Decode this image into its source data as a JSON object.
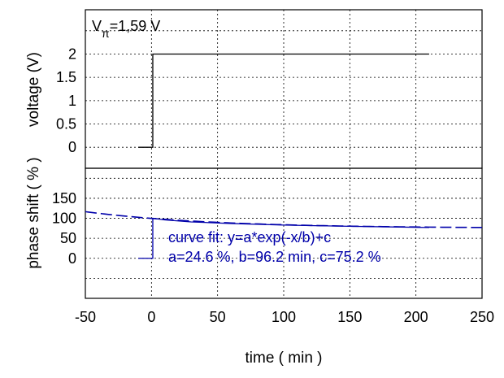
{
  "chart_data": {
    "type": "line",
    "xlabel": "time ( min )",
    "x_ticks": [
      -50,
      0,
      50,
      100,
      150,
      200,
      250
    ],
    "xlim": [
      -50,
      250
    ],
    "panels": [
      {
        "name": "voltage",
        "ylabel": "voltage (V)",
        "y_ticks": [
          0,
          0.5,
          1,
          1.5,
          2
        ],
        "y_tick_labels": [
          "0",
          "0.5",
          "1",
          "1.5",
          "2"
        ],
        "ylim": [
          -0.45,
          2.95
        ],
        "annotation": {
          "label": "V",
          "subscript": "π",
          "value": "=1,59 V"
        },
        "series": [
          {
            "style": "solid",
            "color": "#000000",
            "points": [
              [
                -10,
                0
              ],
              [
                1,
                0
              ],
              [
                1,
                2
              ],
              [
                210,
                2
              ]
            ]
          }
        ]
      },
      {
        "name": "phase shift",
        "ylabel": "phase shift ( % )",
        "y_ticks": [
          0,
          50,
          100,
          150
        ],
        "y_tick_labels": [
          "0",
          "50",
          "100",
          "150"
        ],
        "ylim": [
          -100,
          225
        ],
        "series": [
          {
            "style": "solid",
            "color": "#0000aa",
            "points": [
              [
                -10,
                0
              ],
              [
                1,
                0
              ],
              [
                1,
                100
              ],
              [
                10,
                96
              ],
              [
                30,
                91
              ],
              [
                60,
                87
              ],
              [
                100,
                83
              ],
              [
                150,
                80
              ],
              [
                210,
                77
              ]
            ]
          },
          {
            "style": "dashed",
            "color": "#0000aa",
            "fit": {
              "a": 24.6,
              "b": 96.2,
              "c": 75.2
            },
            "x_range": [
              -50,
              250
            ]
          }
        ],
        "annotation_lines": [
          "curve fit: y=a*exp(-x/b)+c",
          "a=24.6 %, b=96.2 min, c=75.2 %"
        ]
      }
    ]
  }
}
